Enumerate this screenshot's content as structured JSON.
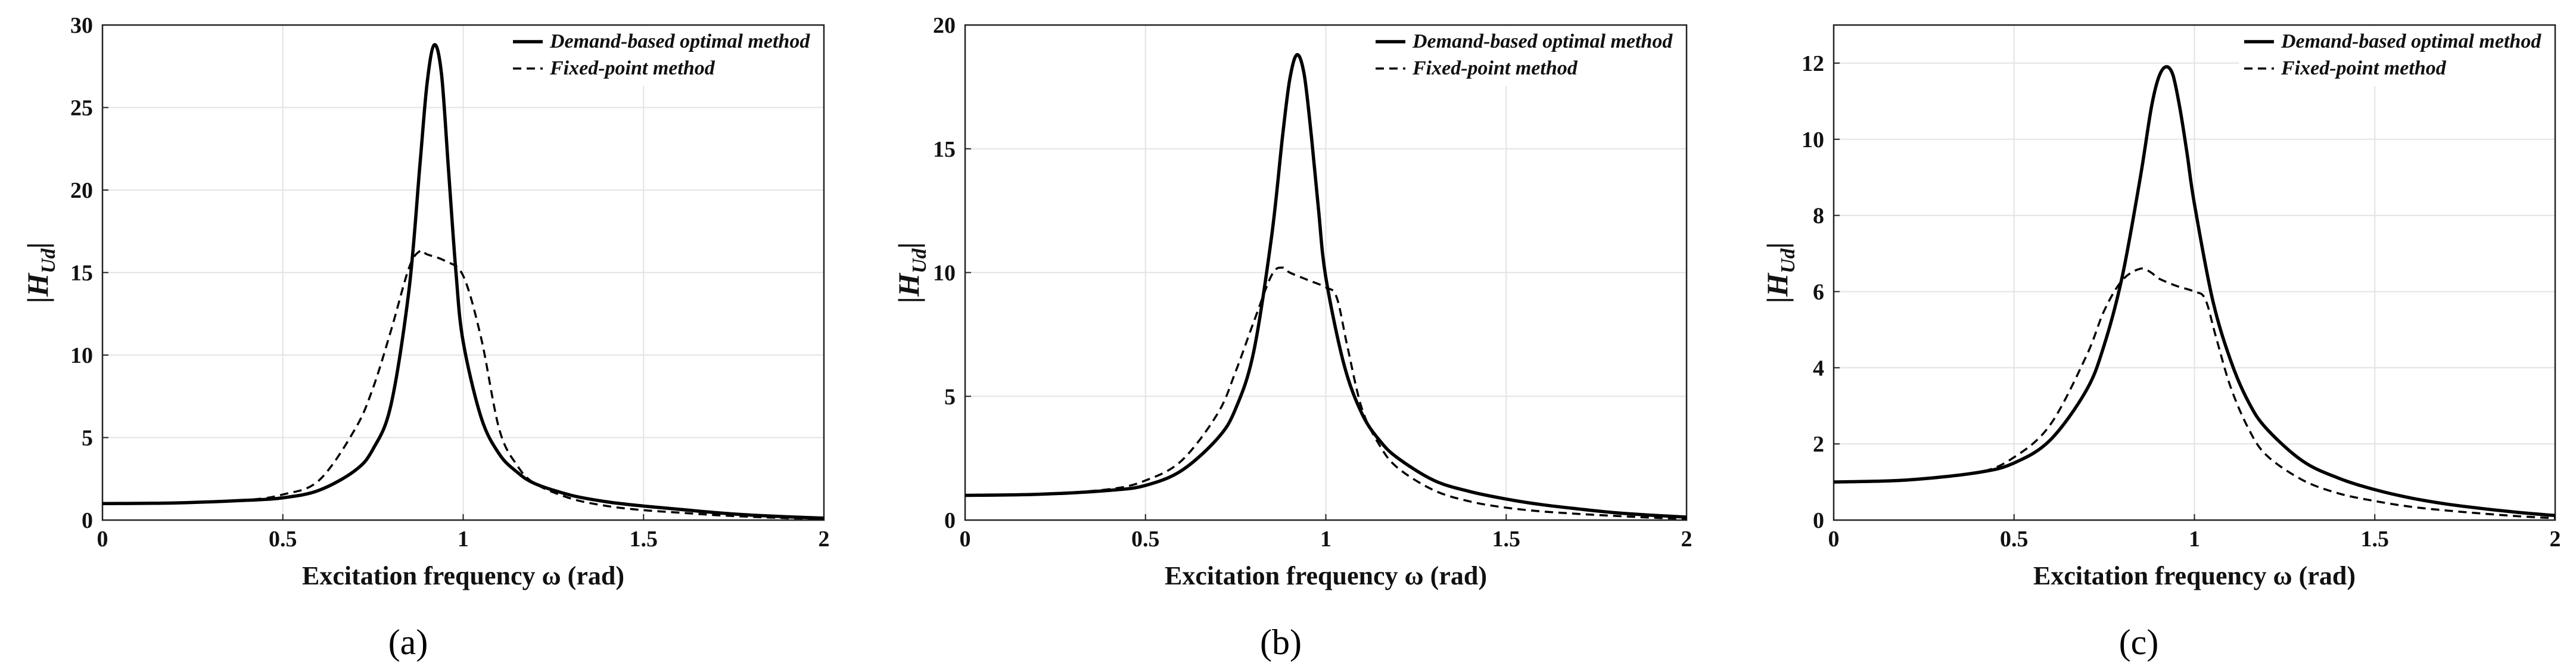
{
  "chart_data": [
    {
      "type": "line",
      "panel_label": "(a)",
      "xlabel": "Excitation frequency ω (rad)",
      "ylabel": "|H",
      "ylabel_sub": "Ud",
      "ylabel_end": "|",
      "xlim": [
        0,
        2
      ],
      "ylim": [
        0,
        30
      ],
      "xticks": [
        "0",
        "0.5",
        "1",
        "1.5",
        "2"
      ],
      "yticks": [
        "0",
        "5",
        "10",
        "15",
        "20",
        "25",
        "30"
      ],
      "legend": [
        "Demand-based optimal method",
        "Fixed-point method"
      ],
      "series": [
        {
          "name": "Demand-based optimal method",
          "style": "solid",
          "x": [
            0,
            0.2,
            0.4,
            0.5,
            0.6,
            0.7,
            0.75,
            0.8,
            0.85,
            0.88,
            0.9,
            0.92,
            0.94,
            0.96,
            0.98,
            1.0,
            1.05,
            1.1,
            1.15,
            1.2,
            1.3,
            1.4,
            1.5,
            1.6,
            1.7,
            1.8,
            1.9,
            2.0
          ],
          "y": [
            1.0,
            1.04,
            1.2,
            1.35,
            1.8,
            3.0,
            4.3,
            7.0,
            14.0,
            21.5,
            26.5,
            28.8,
            27.0,
            21.0,
            15.0,
            10.8,
            6.2,
            4.0,
            2.9,
            2.2,
            1.5,
            1.1,
            0.85,
            0.65,
            0.45,
            0.3,
            0.2,
            0.12
          ]
        },
        {
          "name": "Fixed-point method",
          "style": "dashed",
          "x": [
            0,
            0.2,
            0.4,
            0.5,
            0.6,
            0.7,
            0.75,
            0.8,
            0.85,
            0.88,
            0.9,
            0.95,
            1.0,
            1.05,
            1.1,
            1.15,
            1.2,
            1.3,
            1.4,
            1.5,
            1.6,
            1.7,
            1.8,
            1.9,
            2.0
          ],
          "y": [
            1.0,
            1.04,
            1.22,
            1.55,
            2.4,
            5.5,
            8.0,
            11.5,
            15.3,
            16.3,
            16.1,
            15.7,
            14.8,
            11.0,
            5.5,
            3.3,
            2.2,
            1.3,
            0.85,
            0.6,
            0.45,
            0.3,
            0.2,
            0.12,
            0.08
          ]
        }
      ]
    },
    {
      "type": "line",
      "panel_label": "(b)",
      "xlabel": "Excitation frequency ω (rad)",
      "ylabel": "|H",
      "ylabel_sub": "Ud",
      "ylabel_end": "|",
      "xlim": [
        0,
        2
      ],
      "ylim": [
        0,
        20
      ],
      "xticks": [
        "0",
        "0.5",
        "1",
        "1.5",
        "2"
      ],
      "yticks": [
        "0",
        "5",
        "10",
        "15",
        "20"
      ],
      "legend": [
        "Demand-based optimal method",
        "Fixed-point method"
      ],
      "series": [
        {
          "name": "Demand-based optimal method",
          "style": "solid",
          "x": [
            0,
            0.2,
            0.4,
            0.5,
            0.6,
            0.7,
            0.75,
            0.8,
            0.85,
            0.88,
            0.9,
            0.92,
            0.94,
            0.96,
            0.98,
            1.0,
            1.05,
            1.1,
            1.15,
            1.2,
            1.3,
            1.4,
            1.5,
            1.6,
            1.7,
            1.8,
            1.9,
            2.0
          ],
          "y": [
            1.0,
            1.04,
            1.2,
            1.4,
            2.0,
            3.3,
            4.5,
            6.8,
            11.5,
            15.5,
            17.8,
            18.8,
            18.0,
            15.5,
            12.5,
            9.8,
            6.3,
            4.3,
            3.2,
            2.5,
            1.6,
            1.15,
            0.85,
            0.62,
            0.45,
            0.3,
            0.2,
            0.12
          ]
        },
        {
          "name": "Fixed-point method",
          "style": "dashed",
          "x": [
            0,
            0.2,
            0.4,
            0.5,
            0.6,
            0.7,
            0.75,
            0.8,
            0.85,
            0.88,
            0.9,
            0.95,
            1.0,
            1.03,
            1.06,
            1.1,
            1.15,
            1.2,
            1.3,
            1.4,
            1.5,
            1.6,
            1.7,
            1.8,
            1.9,
            2.0
          ],
          "y": [
            1.0,
            1.04,
            1.25,
            1.6,
            2.4,
            4.3,
            6.0,
            8.0,
            9.9,
            10.2,
            10.0,
            9.7,
            9.4,
            9.0,
            7.0,
            4.5,
            3.0,
            2.1,
            1.2,
            0.75,
            0.5,
            0.35,
            0.25,
            0.17,
            0.1,
            0.05
          ]
        }
      ]
    },
    {
      "type": "line",
      "panel_label": "(c)",
      "xlabel": "Excitation frequency ω (rad)",
      "ylabel": "|H",
      "ylabel_sub": "Ud",
      "ylabel_end": "|",
      "xlim": [
        0,
        2
      ],
      "ylim": [
        0,
        13
      ],
      "xticks": [
        "0",
        "0.5",
        "1",
        "1.5",
        "2"
      ],
      "yticks": [
        "0",
        "2",
        "4",
        "6",
        "8",
        "10",
        "12"
      ],
      "legend": [
        "Demand-based optimal method",
        "Fixed-point method"
      ],
      "series": [
        {
          "name": "Demand-based optimal method",
          "style": "solid",
          "x": [
            0,
            0.2,
            0.4,
            0.5,
            0.6,
            0.7,
            0.75,
            0.8,
            0.85,
            0.88,
            0.9,
            0.92,
            0.94,
            0.96,
            0.98,
            1.0,
            1.05,
            1.1,
            1.15,
            1.2,
            1.3,
            1.4,
            1.5,
            1.6,
            1.7,
            1.8,
            1.9,
            2.0
          ],
          "y": [
            1.0,
            1.05,
            1.25,
            1.5,
            2.1,
            3.4,
            4.6,
            6.4,
            9.0,
            10.8,
            11.6,
            11.9,
            11.7,
            10.8,
            9.6,
            8.3,
            5.8,
            4.2,
            3.1,
            2.4,
            1.55,
            1.1,
            0.8,
            0.58,
            0.42,
            0.3,
            0.2,
            0.12
          ]
        },
        {
          "name": "Fixed-point method",
          "style": "dashed",
          "x": [
            0,
            0.2,
            0.4,
            0.5,
            0.6,
            0.7,
            0.75,
            0.8,
            0.85,
            0.88,
            0.9,
            0.95,
            1.0,
            1.03,
            1.06,
            1.1,
            1.15,
            1.2,
            1.3,
            1.4,
            1.5,
            1.6,
            1.7,
            1.8,
            1.9,
            2.0
          ],
          "y": [
            1.0,
            1.04,
            1.25,
            1.65,
            2.5,
            4.3,
            5.5,
            6.3,
            6.6,
            6.5,
            6.35,
            6.15,
            6.0,
            5.8,
            4.8,
            3.5,
            2.4,
            1.7,
            1.05,
            0.7,
            0.5,
            0.35,
            0.25,
            0.17,
            0.1,
            0.05
          ]
        }
      ]
    }
  ]
}
